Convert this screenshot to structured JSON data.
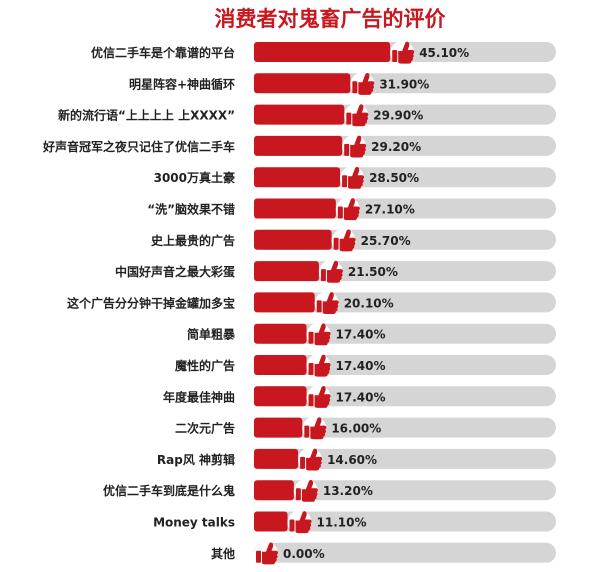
{
  "chart_data": {
    "type": "bar",
    "orientation": "horizontal",
    "title": "消费者对鬼畜广告的评价",
    "categories": [
      "优信二手车是个靠谱的平台",
      "明星阵容+神曲循环",
      "新的流行语“上上上上 上XXXX”",
      "好声音冠军之夜只记住了优信二手车",
      "3000万真土豪",
      "“洗”脑效果不错",
      "史上最贵的广告",
      "中国好声音之最大彩蛋",
      "这个广告分分钟干掉金罐加多宝",
      "简单粗暴",
      "魔性的广告",
      "年度最佳神曲",
      "二次元广告",
      "Rap风 神剪辑",
      "优信二手车到底是什么鬼",
      "Money talks",
      "其他"
    ],
    "values": [
      45.1,
      31.9,
      29.9,
      29.2,
      28.5,
      27.1,
      25.7,
      21.5,
      20.1,
      17.4,
      17.4,
      17.4,
      16.0,
      14.6,
      13.2,
      11.1,
      0.0
    ],
    "value_labels": [
      "45.10%",
      "31.90%",
      "29.90%",
      "29.20%",
      "28.50%",
      "27.10%",
      "25.70%",
      "21.50%",
      "20.10%",
      "17.40%",
      "17.40%",
      "17.40%",
      "16.00%",
      "14.60%",
      "13.20%",
      "11.10%",
      "0.00%"
    ],
    "xlim": [
      0,
      100
    ],
    "grid": false,
    "legend": "none",
    "colors": {
      "bar": "#c8171e",
      "track": "#d5d5d5",
      "thumb": "#c8171e",
      "title": "#c8171e",
      "text": "#222222"
    }
  }
}
